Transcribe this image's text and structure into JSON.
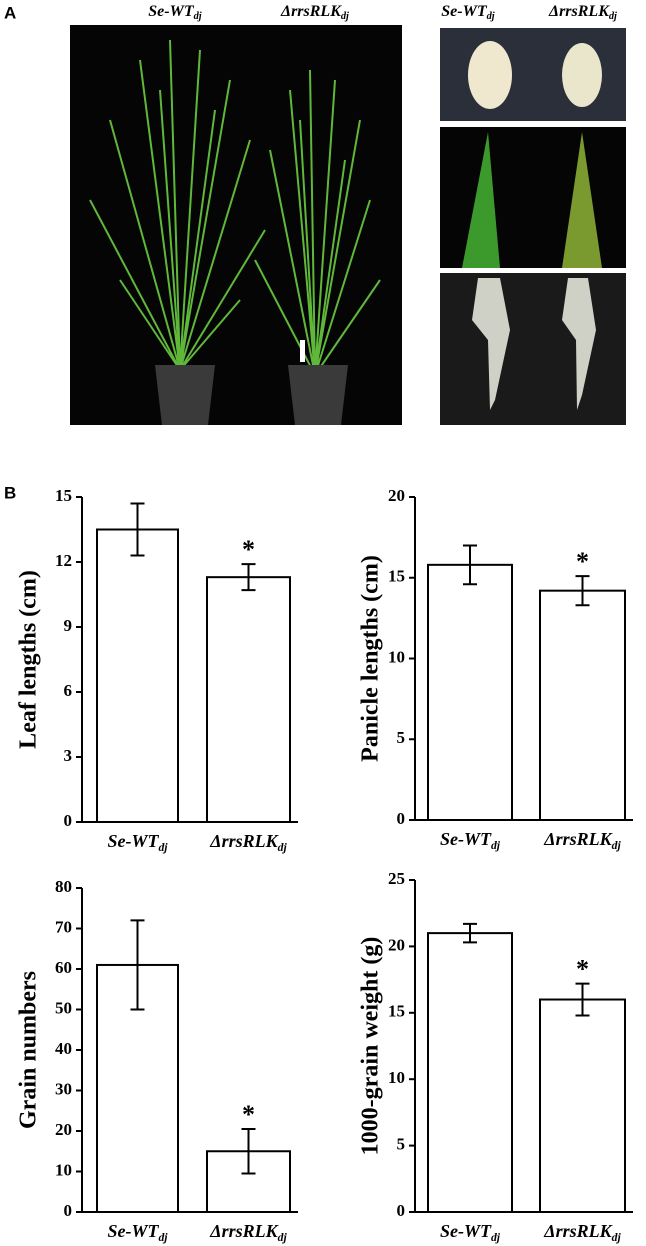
{
  "panels": {
    "a": "A",
    "b": "B"
  },
  "photo_labels": {
    "plants": [
      {
        "text": "Se-WT",
        "sub": "dj"
      },
      {
        "text": "ΔrrsRLK",
        "sub": "dj"
      }
    ],
    "details": [
      {
        "text": "Se-WT",
        "sub": "dj"
      },
      {
        "text": "ΔrrsRLK",
        "sub": "dj"
      }
    ]
  },
  "chart_data": [
    {
      "type": "bar",
      "y_label": "Leaf lengths (cm)",
      "categories": [
        "Se-WT",
        "ΔrrsRLK"
      ],
      "category_subscripts": [
        "dj",
        "dj"
      ],
      "values": [
        13.5,
        11.3
      ],
      "errors": [
        1.2,
        0.6
      ],
      "color": "#ffffff",
      "annotations": [
        {
          "x": "ΔrrsRLK",
          "text": "*"
        }
      ],
      "ylim": [
        0,
        15
      ],
      "yticks": [
        0,
        3,
        6,
        9,
        12,
        15
      ]
    },
    {
      "type": "bar",
      "y_label": "Panicle lengths (cm)",
      "categories": [
        "Se-WT",
        "ΔrrsRLK"
      ],
      "category_subscripts": [
        "dj",
        "dj"
      ],
      "values": [
        15.8,
        14.2
      ],
      "errors": [
        1.2,
        0.9
      ],
      "color": "#ffffff",
      "annotations": [
        {
          "x": "ΔrrsRLK",
          "text": "*"
        }
      ],
      "ylim": [
        0,
        20
      ],
      "yticks": [
        0,
        5,
        10,
        15,
        20
      ]
    },
    {
      "type": "bar",
      "y_label": "Grain numbers",
      "categories": [
        "Se-WT",
        "ΔrrsRLK"
      ],
      "category_subscripts": [
        "dj",
        "dj"
      ],
      "values": [
        61,
        15
      ],
      "errors": [
        11,
        5.5
      ],
      "color": "#ffffff",
      "annotations": [
        {
          "x": "ΔrrsRLK",
          "text": "*"
        }
      ],
      "ylim": [
        0,
        80
      ],
      "yticks": [
        0,
        10,
        20,
        30,
        40,
        50,
        60,
        70,
        80
      ]
    },
    {
      "type": "bar",
      "y_label": "1000-grain weight (g)",
      "categories": [
        "Se-WT",
        "ΔrrsRLK"
      ],
      "category_subscripts": [
        "dj",
        "dj"
      ],
      "values": [
        21,
        16
      ],
      "errors": [
        0.7,
        1.2
      ],
      "color": "#ffffff",
      "annotations": [
        {
          "x": "ΔrrsRLK",
          "text": "*"
        }
      ],
      "ylim": [
        0,
        25
      ],
      "yticks": [
        0,
        5,
        10,
        15,
        20,
        25
      ]
    }
  ]
}
